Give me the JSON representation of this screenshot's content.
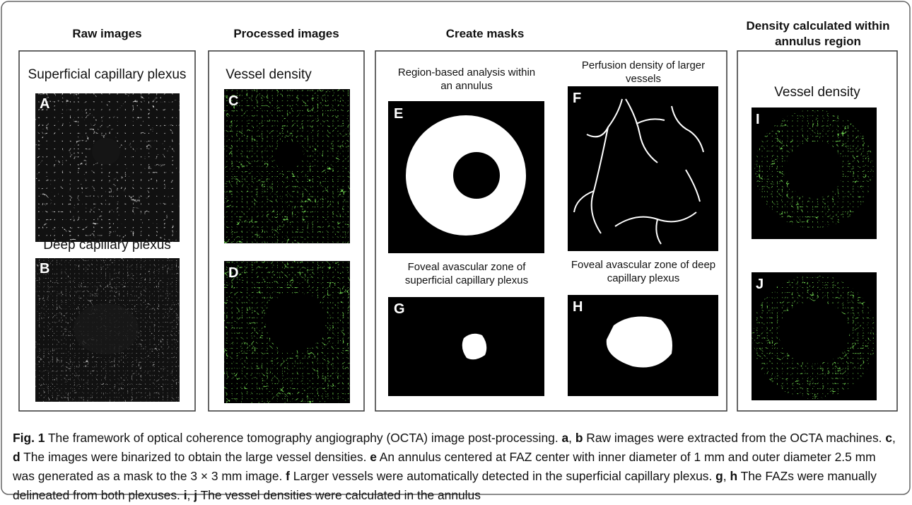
{
  "panels": [
    {
      "title": "Raw images",
      "images": [
        {
          "caption": "Superficial capillary plexus",
          "label": "A"
        },
        {
          "caption": "Deep capillary plexus",
          "label": "B"
        }
      ]
    },
    {
      "title": "Processed images",
      "images": [
        {
          "caption": "Vessel density",
          "label": "C"
        },
        {
          "label": "D"
        }
      ]
    },
    {
      "title": "Create masks",
      "images": [
        {
          "caption": "Region-based analysis within an annulus",
          "label": "E"
        },
        {
          "caption": "Perfusion density of larger vessels",
          "label": "F"
        },
        {
          "caption": "Foveal avascular zone of superficial capillary plexus",
          "label": "G"
        },
        {
          "caption": "Foveal avascular zone of deep capillary plexus",
          "label": "H"
        }
      ]
    },
    {
      "title": "Density calculated within annulus region",
      "images": [
        {
          "caption": "Vessel density",
          "label": "I"
        },
        {
          "label": "J"
        }
      ]
    }
  ],
  "caption": {
    "parts": [
      "Fig. 1",
      " The framework of optical coherence tomography angiography (OCTA) image post-processing. ",
      "a",
      ", ",
      "b",
      " Raw images were extracted from the OCTA machines. ",
      "c",
      ", ",
      "d",
      " The images were binarized to obtain the large vessel densities. ",
      "e",
      " An annulus centered at FAZ center with inner diameter of 1 mm and outer diameter 2.5 mm was generated as a mask to the 3 × 3 mm image. ",
      "f",
      " Larger vessels were automatically detected in the superficial capillary plexus. ",
      "g",
      ", ",
      "h",
      " The FAZs were manually delineated from both plexuses. ",
      "i",
      ", ",
      "j",
      " The vessel densities were calculated in the annulus"
    ]
  }
}
